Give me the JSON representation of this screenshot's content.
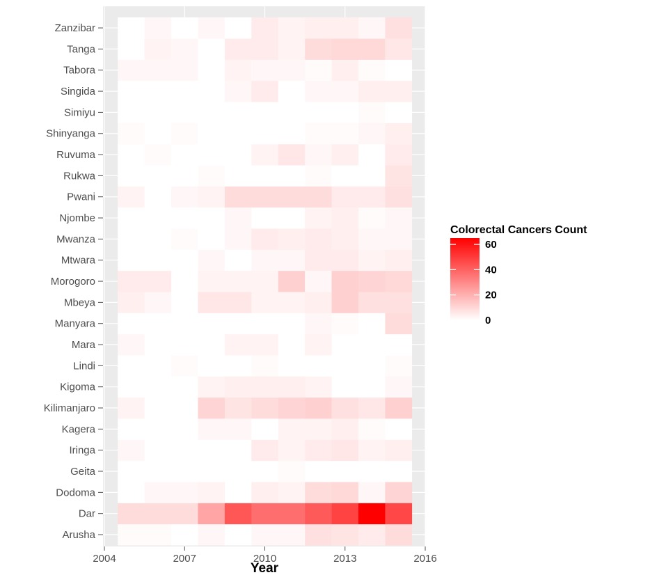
{
  "chart_data": {
    "type": "heatmap",
    "xlabel": "Year",
    "ylabel": "",
    "xlim": [
      2004,
      2016
    ],
    "x_ticks": [
      "2004",
      "2007",
      "2010",
      "2013",
      "2016"
    ],
    "x": [
      2005,
      2006,
      2007,
      2008,
      2009,
      2010,
      2011,
      2012,
      2013,
      2014,
      2015
    ],
    "categories": [
      "Arusha",
      "Dar",
      "Dodoma",
      "Geita",
      "Iringa",
      "Kagera",
      "Kilimanjaro",
      "Kigoma",
      "Lindi",
      "Mara",
      "Manyara",
      "Mbeya",
      "Morogoro",
      "Mtwara",
      "Mwanza",
      "Njombe",
      "Pwani",
      "Rukwa",
      "Ruvuma",
      "Shinyanga",
      "Simiyu",
      "Singida",
      "Tabora",
      "Tanga",
      "Zanzibar"
    ],
    "values": [
      [
        1,
        1,
        0,
        2,
        0,
        2,
        2,
        8,
        7,
        5,
        9
      ],
      [
        9,
        9,
        9,
        23,
        43,
        37,
        37,
        42,
        48,
        65,
        47
      ],
      [
        0,
        2,
        2,
        3,
        0,
        4,
        3,
        9,
        10,
        2,
        11
      ],
      [
        0,
        0,
        0,
        0,
        0,
        0,
        1,
        0,
        0,
        0,
        0
      ],
      [
        2,
        0,
        0,
        0,
        0,
        5,
        3,
        5,
        6,
        3,
        4
      ],
      [
        0,
        0,
        0,
        2,
        2,
        0,
        3,
        3,
        4,
        1,
        0
      ],
      [
        3,
        0,
        0,
        11,
        7,
        9,
        11,
        12,
        8,
        6,
        12
      ],
      [
        0,
        0,
        0,
        3,
        4,
        4,
        4,
        3,
        0,
        0,
        2
      ],
      [
        0,
        0,
        1,
        0,
        0,
        1,
        0,
        0,
        0,
        0,
        1
      ],
      [
        2,
        0,
        0,
        0,
        3,
        3,
        0,
        3,
        0,
        0,
        0
      ],
      [
        0,
        0,
        0,
        0,
        0,
        0,
        0,
        2,
        1,
        0,
        9
      ],
      [
        4,
        2,
        0,
        6,
        6,
        3,
        3,
        4,
        12,
        8,
        8
      ],
      [
        5,
        5,
        0,
        3,
        3,
        3,
        12,
        2,
        12,
        11,
        10
      ],
      [
        0,
        0,
        0,
        2,
        0,
        2,
        2,
        5,
        5,
        3,
        4
      ],
      [
        0,
        0,
        1,
        0,
        2,
        5,
        4,
        5,
        4,
        2,
        2
      ],
      [
        0,
        0,
        0,
        0,
        2,
        0,
        0,
        3,
        4,
        1,
        2
      ],
      [
        3,
        0,
        2,
        3,
        9,
        9,
        9,
        9,
        5,
        5,
        8
      ],
      [
        0,
        0,
        0,
        1,
        0,
        0,
        0,
        1,
        0,
        0,
        7
      ],
      [
        0,
        1,
        0,
        0,
        0,
        3,
        6,
        2,
        4,
        0,
        5
      ],
      [
        1,
        0,
        1,
        0,
        0,
        0,
        0,
        1,
        1,
        2,
        4
      ],
      [
        0,
        0,
        0,
        0,
        0,
        0,
        0,
        0,
        0,
        1,
        0
      ],
      [
        0,
        0,
        0,
        0,
        2,
        5,
        0,
        2,
        2,
        4,
        4
      ],
      [
        2,
        2,
        2,
        0,
        3,
        2,
        2,
        1,
        4,
        1,
        0
      ],
      [
        0,
        3,
        2,
        0,
        5,
        5,
        3,
        9,
        10,
        10,
        6
      ],
      [
        0,
        2,
        0,
        2,
        0,
        5,
        3,
        4,
        4,
        2,
        8
      ]
    ],
    "colorscale": {
      "low": "#ffffff",
      "high": "#ff0000",
      "min": 0,
      "max": 65
    },
    "grid": true,
    "legend": {
      "title": "Colorectal Cancers Count",
      "position": "right",
      "ticks": [
        "0",
        "20",
        "40",
        "60"
      ]
    }
  },
  "colors": {
    "panel_background": "#ebebeb",
    "gridline": "#ffffff",
    "tick_text": "#4d4d4d"
  }
}
